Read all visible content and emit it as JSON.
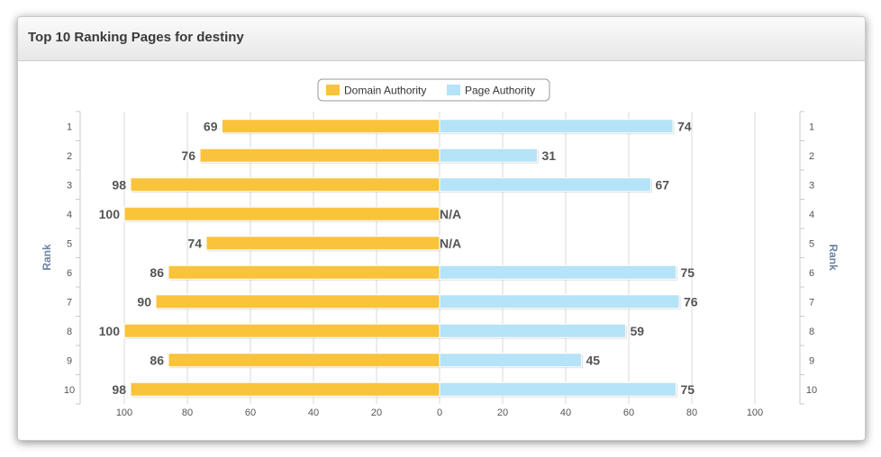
{
  "panel": {
    "title": "Top 10 Ranking Pages for destiny"
  },
  "chart_data": {
    "type": "bar",
    "orientation": "horizontal-diverging",
    "categories": [
      "1",
      "2",
      "3",
      "4",
      "5",
      "6",
      "7",
      "8",
      "9",
      "10"
    ],
    "series": [
      {
        "name": "Domain Authority",
        "color": "#f9c33b",
        "direction": "left",
        "values": [
          69,
          76,
          98,
          100,
          74,
          86,
          90,
          100,
          86,
          98
        ],
        "labels": [
          "69",
          "76",
          "98",
          "100",
          "74",
          "86",
          "90",
          "100",
          "86",
          "98"
        ]
      },
      {
        "name": "Page Authority",
        "color": "#b5e3f7",
        "direction": "right",
        "values": [
          74,
          31,
          67,
          null,
          null,
          75,
          76,
          59,
          45,
          75
        ],
        "labels": [
          "74",
          "31",
          "67",
          "N/A",
          "N/A",
          "75",
          "76",
          "59",
          "45",
          "75"
        ]
      }
    ],
    "xticks": [
      "100",
      "80",
      "60",
      "40",
      "20",
      "0",
      "20",
      "40",
      "60",
      "80",
      "100"
    ],
    "xlim": [
      -100,
      100
    ],
    "ylabel_left": "Rank",
    "ylabel_right": "Rank",
    "legend_position": "top-center",
    "grid": true
  }
}
